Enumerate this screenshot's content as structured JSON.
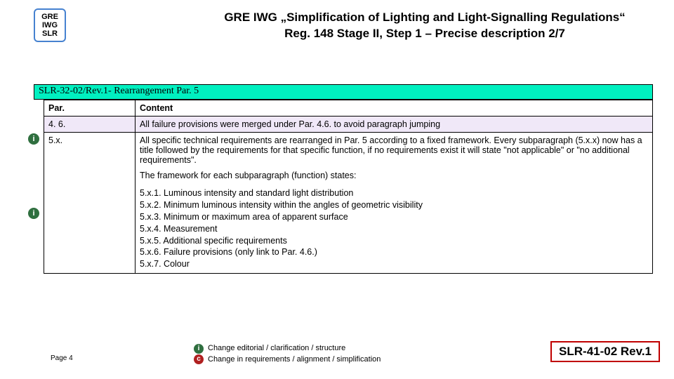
{
  "logo": {
    "line1": "GRE",
    "line2": "IWG",
    "line3": "SLR"
  },
  "header": {
    "line1": "GRE IWG „Simplification of Lighting and Light-Signalling Regulations“",
    "line2": "Reg. 148 Stage II, Step 1 – Precise description 2/7"
  },
  "section_bar": "SLR-32-02/Rev.1- Rearrangement Par. 5",
  "table": {
    "headers": {
      "par": "Par.",
      "content": "Content"
    },
    "rows": [
      {
        "par": "4. 6.",
        "content": "All failure provisions were merged under Par. 4.6. to avoid paragraph jumping",
        "highlight": true
      },
      {
        "par": "5.x.",
        "content_p1": "All specific technical requirements are rearranged in Par. 5 according to a fixed framework. Every subparagraph (5.x.x) now has a title followed by the requirements for that specific function, if no requirements exist it will state \"not applicable\" or \"no additional requirements\".",
        "content_p2": "The framework for each subparagraph (function) states:",
        "framework": [
          "5.x.1. Luminous intensity and standard light distribution",
          "5.x.2. Minimum luminous intensity within the angles of geometric visibility",
          "5.x.3. Minimum or maximum area of apparent surface",
          "5.x.4. Measurement",
          "5.x.5. Additional specific requirements",
          "5.x.6. Failure provisions (only link to Par. 4.6.)",
          "5.x.7. Colour"
        ]
      }
    ]
  },
  "badges": {
    "i": "i",
    "c": "c"
  },
  "legend": {
    "i_text": "Change editorial / clarification / structure",
    "c_text": "Change in requirements / alignment / simplification"
  },
  "footer": {
    "page": "Page 4",
    "doc_ref": "SLR-41-02 Rev.1"
  },
  "colors": {
    "section_bg": "#00f0c0",
    "highlight_bg": "#f0e8f8",
    "badge_i": "#2f6f3f",
    "badge_c": "#b02020",
    "doc_ref_border": "#c00000",
    "logo_border": "#4682d0"
  }
}
